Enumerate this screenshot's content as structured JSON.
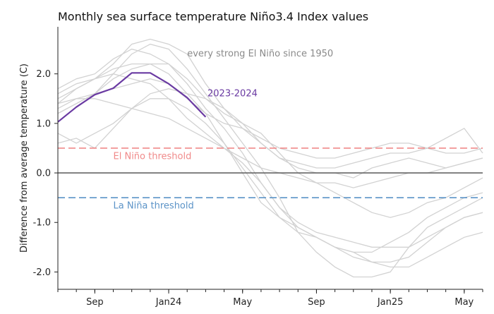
{
  "chart_data": {
    "type": "line",
    "title": "Monthly sea surface temperature Niño3.4 Index values",
    "xlabel": "",
    "ylabel": "Difference from average temperature (C)",
    "xlim": [
      0,
      23
    ],
    "ylim": [
      -2.35,
      2.95
    ],
    "yticks": [
      {
        "value": 2.0,
        "label": "2.0"
      },
      {
        "value": 1.0,
        "label": "1.0"
      },
      {
        "value": 0.0,
        "label": "0.0"
      },
      {
        "value": -1.0,
        "label": "-1.0"
      },
      {
        "value": -2.0,
        "label": "-2.0"
      }
    ],
    "xticks": [
      {
        "x": 2,
        "label": "Sep"
      },
      {
        "x": 6,
        "label": "Jan24"
      },
      {
        "x": 10,
        "label": "May"
      },
      {
        "x": 14,
        "label": "Sep"
      },
      {
        "x": 18,
        "label": "Jan25"
      },
      {
        "x": 22,
        "label": "May"
      }
    ],
    "minor_xticks": [
      0,
      1,
      2,
      3,
      4,
      5,
      6,
      7,
      8,
      9,
      10,
      11,
      12,
      13,
      14,
      15,
      16,
      17,
      18,
      19,
      20,
      21,
      22,
      23
    ],
    "reference_lines": [
      {
        "name": "el-nino-threshold",
        "value": 0.5,
        "label": "El Niño threshold",
        "color": "#f08a8a",
        "dashed": true,
        "label_x": 3.0,
        "label_y": 0.28
      },
      {
        "name": "la-nina-threshold",
        "value": -0.5,
        "label": "La Niña threshold",
        "color": "#5b93c7",
        "dashed": true,
        "label_x": 3.0,
        "label_y": -0.72
      },
      {
        "name": "zero-line",
        "value": 0.0,
        "color": "#666666",
        "dashed": false
      }
    ],
    "series": [
      {
        "name": "2023-2024",
        "color": "#6a3aa2",
        "label": "2023-2024",
        "label_x": 8.1,
        "label_y": 1.55,
        "x": [
          0,
          1,
          2,
          3,
          4,
          5,
          6,
          7,
          8
        ],
        "values": [
          1.03,
          1.33,
          1.58,
          1.71,
          2.02,
          2.02,
          1.8,
          1.52,
          1.13
        ]
      }
    ],
    "background_series": {
      "label": "every strong El Niño since 1950",
      "color": "#d2d2d2",
      "label_x": 7.0,
      "label_y": 2.35,
      "series": [
        {
          "name": "1957-58",
          "x": [
            0,
            1,
            2,
            3,
            4,
            5,
            6,
            7,
            8,
            9,
            10,
            11,
            12,
            13,
            14,
            15,
            16,
            17,
            18,
            19,
            20,
            21,
            22,
            23
          ],
          "values": [
            1.3,
            1.5,
            1.6,
            1.7,
            1.8,
            1.9,
            1.8,
            1.5,
            1.2,
            1.0,
            0.9,
            0.7,
            0.5,
            0.4,
            0.3,
            0.3,
            0.4,
            0.5,
            0.6,
            0.6,
            0.5,
            0.4,
            0.4,
            0.5
          ]
        },
        {
          "name": "1965-66",
          "x": [
            0,
            1,
            2,
            3,
            4,
            5,
            6,
            7,
            8,
            9,
            10,
            11,
            12,
            13,
            14,
            15,
            16,
            17,
            18,
            19,
            20,
            21,
            22,
            23
          ],
          "values": [
            1.6,
            1.8,
            1.9,
            2.0,
            1.9,
            1.8,
            1.5,
            1.1,
            0.8,
            0.5,
            0.3,
            0.1,
            0.0,
            -0.1,
            -0.2,
            -0.2,
            -0.3,
            -0.2,
            -0.1,
            0.0,
            0.0,
            0.1,
            0.2,
            0.3
          ]
        },
        {
          "name": "1972-73",
          "x": [
            0,
            1,
            2,
            3,
            4,
            5,
            6,
            7,
            8,
            9,
            10,
            11,
            12,
            13,
            14,
            15,
            16,
            17,
            18,
            19,
            20,
            21,
            22,
            23
          ],
          "values": [
            1.5,
            1.7,
            1.9,
            2.1,
            2.2,
            2.2,
            2.0,
            1.6,
            1.2,
            0.6,
            0.0,
            -0.6,
            -0.9,
            -1.1,
            -1.3,
            -1.5,
            -1.6,
            -1.8,
            -1.9,
            -1.9,
            -1.7,
            -1.5,
            -1.3,
            -1.2
          ]
        },
        {
          "name": "1982-83",
          "x": [
            0,
            1,
            2,
            3,
            4,
            5,
            6,
            7,
            8,
            9,
            10,
            11,
            12,
            13,
            14,
            15,
            16,
            17,
            18,
            19,
            20,
            21,
            22,
            23
          ],
          "values": [
            1.2,
            1.4,
            1.6,
            1.9,
            2.1,
            2.2,
            2.2,
            1.9,
            1.5,
            1.2,
            1.0,
            0.8,
            0.4,
            0.0,
            -0.2,
            -0.4,
            -0.6,
            -0.8,
            -0.9,
            -0.8,
            -0.6,
            -0.5,
            -0.3,
            -0.1
          ]
        },
        {
          "name": "1987-88",
          "x": [
            0,
            1,
            2,
            3,
            4,
            5,
            6,
            7,
            8,
            9,
            10,
            11,
            12,
            13,
            14,
            15,
            16,
            17,
            18,
            19,
            20,
            21,
            22,
            23
          ],
          "values": [
            1.4,
            1.5,
            1.5,
            1.4,
            1.3,
            1.2,
            1.1,
            0.9,
            0.7,
            0.5,
            0.2,
            -0.2,
            -0.7,
            -1.1,
            -1.3,
            -1.5,
            -1.7,
            -1.8,
            -1.8,
            -1.7,
            -1.4,
            -1.1,
            -0.9,
            -0.8
          ]
        },
        {
          "name": "1991-92",
          "x": [
            0,
            1,
            2,
            3,
            4,
            5,
            6,
            7,
            8,
            9,
            10,
            11,
            12,
            13,
            14,
            15,
            16,
            17,
            18,
            19,
            20,
            21,
            22,
            23
          ],
          "values": [
            0.6,
            0.7,
            0.5,
            0.9,
            1.3,
            1.6,
            1.7,
            1.6,
            1.5,
            1.3,
            1.0,
            0.6,
            0.3,
            0.1,
            0.0,
            0.0,
            -0.1,
            0.1,
            0.2,
            0.3,
            0.2,
            0.1,
            0.2,
            0.3
          ]
        },
        {
          "name": "1997-98",
          "x": [
            0,
            1,
            2,
            3,
            4,
            5,
            6,
            7,
            8,
            9,
            10,
            11,
            12,
            13,
            14,
            15,
            16,
            17,
            18,
            19,
            20,
            21,
            22,
            23
          ],
          "values": [
            1.7,
            1.9,
            2.0,
            2.3,
            2.5,
            2.4,
            2.2,
            1.8,
            1.3,
            0.9,
            0.4,
            -0.2,
            -0.7,
            -1.0,
            -1.2,
            -1.3,
            -1.4,
            -1.5,
            -1.5,
            -1.5,
            -1.3,
            -1.1,
            -0.9,
            -0.8
          ]
        },
        {
          "name": "2009-10",
          "x": [
            0,
            1,
            2,
            3,
            4,
            5,
            6,
            7,
            8,
            9,
            10,
            11,
            12,
            13,
            14,
            15,
            16,
            17,
            18,
            19,
            20,
            21,
            22,
            23
          ],
          "values": [
            0.8,
            0.6,
            0.8,
            1.0,
            1.3,
            1.5,
            1.5,
            1.3,
            1.0,
            0.6,
            0.1,
            -0.4,
            -0.9,
            -1.2,
            -1.3,
            -1.5,
            -1.6,
            -1.6,
            -1.4,
            -1.2,
            -0.9,
            -0.7,
            -0.5,
            -0.4
          ]
        },
        {
          "name": "2015-16",
          "x": [
            0,
            1,
            2,
            3,
            4,
            5,
            6,
            7,
            8,
            9,
            10,
            11,
            12,
            13,
            14,
            15,
            16,
            17,
            18,
            19,
            20,
            21,
            22,
            23
          ],
          "values": [
            1.2,
            1.4,
            1.6,
            2.0,
            2.4,
            2.6,
            2.5,
            2.1,
            1.6,
            1.1,
            0.6,
            0.1,
            -0.5,
            -1.2,
            -1.6,
            -1.9,
            -2.1,
            -2.1,
            -2.0,
            -1.5,
            -1.1,
            -0.9,
            -0.7,
            -0.5
          ]
        },
        {
          "name": "2015b",
          "x": [
            0,
            1,
            2,
            3,
            4,
            5,
            6,
            7,
            8,
            9,
            10,
            11,
            12,
            13,
            14,
            15,
            16,
            17,
            18,
            19,
            20,
            21,
            22,
            23
          ],
          "values": [
            1.4,
            1.7,
            1.9,
            2.2,
            2.6,
            2.7,
            2.6,
            2.4,
            1.8,
            1.3,
            0.9,
            0.6,
            0.3,
            0.2,
            0.1,
            0.1,
            0.2,
            0.3,
            0.4,
            0.4,
            0.5,
            0.7,
            0.9,
            0.4
          ]
        }
      ]
    }
  }
}
